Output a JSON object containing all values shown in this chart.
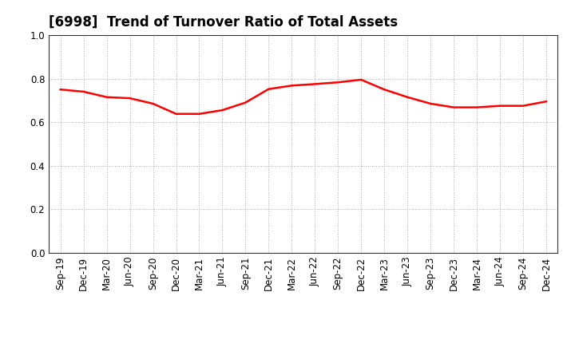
{
  "title": "[6998]  Trend of Turnover Ratio of Total Assets",
  "x_labels": [
    "Sep-19",
    "Dec-19",
    "Mar-20",
    "Jun-20",
    "Sep-20",
    "Dec-20",
    "Mar-21",
    "Jun-21",
    "Sep-21",
    "Dec-21",
    "Mar-22",
    "Jun-22",
    "Sep-22",
    "Dec-22",
    "Mar-23",
    "Jun-23",
    "Sep-23",
    "Dec-23",
    "Mar-24",
    "Jun-24",
    "Sep-24",
    "Dec-24"
  ],
  "y_values": [
    0.75,
    0.74,
    0.715,
    0.71,
    0.685,
    0.638,
    0.638,
    0.655,
    0.69,
    0.752,
    0.768,
    0.775,
    0.783,
    0.795,
    0.75,
    0.715,
    0.685,
    0.668,
    0.668,
    0.675,
    0.675,
    0.695
  ],
  "line_color": "#FF0000",
  "line_width": 1.8,
  "ylim": [
    0.0,
    1.0
  ],
  "yticks": [
    0.0,
    0.2,
    0.4,
    0.6,
    0.8,
    1.0
  ],
  "background_color": "#FFFFFF",
  "grid_color": "#AAAAAA",
  "title_fontsize": 12,
  "tick_fontsize": 8.5
}
